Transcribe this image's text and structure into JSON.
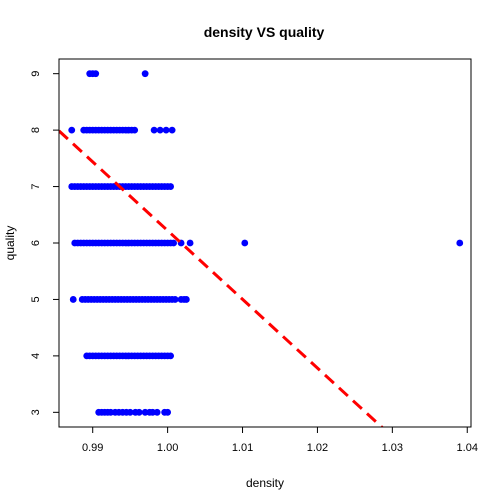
{
  "chart_data": {
    "type": "scatter",
    "title": "density VS quality",
    "xlabel": "density",
    "ylabel": "quality",
    "xlim": [
      0.9855,
      1.0405
    ],
    "ylim": [
      2.74,
      9.26
    ],
    "xticks": [
      {
        "value": 0.99,
        "label": "0.99"
      },
      {
        "value": 1.0,
        "label": "1.00"
      },
      {
        "value": 1.01,
        "label": "1.01"
      },
      {
        "value": 1.02,
        "label": "1.02"
      },
      {
        "value": 1.03,
        "label": "1.03"
      },
      {
        "value": 1.04,
        "label": "1.04"
      }
    ],
    "yticks": [
      {
        "value": 3,
        "label": "3"
      },
      {
        "value": 4,
        "label": "4"
      },
      {
        "value": 5,
        "label": "5"
      },
      {
        "value": 6,
        "label": "6"
      },
      {
        "value": 7,
        "label": "7"
      },
      {
        "value": 8,
        "label": "8"
      },
      {
        "value": 9,
        "label": "9"
      }
    ],
    "point_color": "#0000ff",
    "line_color": "#ff0000",
    "grid": false,
    "series": [
      {
        "values": [
          {
            "quality": 3,
            "density": [
              0.9908,
              0.9912,
              0.9916,
              0.992,
              0.9924,
              0.993,
              0.9935,
              0.994,
              0.9945,
              0.995,
              0.9957,
              0.9962,
              0.997,
              0.9976,
              0.998,
              0.9986,
              0.9996,
              1.0
            ]
          },
          {
            "quality": 4,
            "density": [
              0.9892,
              0.9896,
              0.99,
              0.9904,
              0.9908,
              0.9912,
              0.9916,
              0.992,
              0.9924,
              0.9928,
              0.9932,
              0.9936,
              0.994,
              0.9944,
              0.9948,
              0.9952,
              0.9956,
              0.996,
              0.9964,
              0.9968,
              0.9972,
              0.9976,
              0.998,
              0.9984,
              0.9988,
              0.9992,
              0.9996,
              1.0,
              1.0004
            ]
          },
          {
            "quality": 5,
            "density": [
              0.9874,
              0.9886,
              0.989,
              0.9894,
              0.9898,
              0.9902,
              0.9906,
              0.991,
              0.9914,
              0.9918,
              0.9922,
              0.9926,
              0.993,
              0.9934,
              0.9938,
              0.9942,
              0.9946,
              0.995,
              0.9954,
              0.9958,
              0.9962,
              0.9966,
              0.997,
              0.9974,
              0.9978,
              0.9982,
              0.9986,
              0.999,
              0.9994,
              0.9998,
              1.0002,
              1.0006,
              1.001,
              1.0018,
              1.0022,
              1.0025
            ]
          },
          {
            "quality": 6,
            "density": [
              0.9876,
              0.988,
              0.9884,
              0.9888,
              0.9892,
              0.9896,
              0.99,
              0.9904,
              0.9908,
              0.9912,
              0.9916,
              0.992,
              0.9924,
              0.9928,
              0.9932,
              0.9936,
              0.994,
              0.9944,
              0.9948,
              0.9952,
              0.9956,
              0.996,
              0.9964,
              0.9968,
              0.9972,
              0.9976,
              0.998,
              0.9984,
              0.9988,
              0.9992,
              0.9996,
              1.0,
              1.0004,
              1.0008,
              1.0018,
              1.003,
              1.0103,
              1.039
            ]
          },
          {
            "quality": 7,
            "density": [
              0.9872,
              0.9876,
              0.988,
              0.9884,
              0.9888,
              0.9892,
              0.9896,
              0.99,
              0.9904,
              0.9908,
              0.9912,
              0.9916,
              0.992,
              0.9924,
              0.9928,
              0.9932,
              0.9936,
              0.994,
              0.9944,
              0.9948,
              0.9952,
              0.9956,
              0.996,
              0.9964,
              0.9968,
              0.9972,
              0.9976,
              0.998,
              0.9984,
              0.9988,
              0.9992,
              0.9996,
              1.0,
              1.0004
            ]
          },
          {
            "quality": 8,
            "density": [
              0.9872,
              0.9888,
              0.9892,
              0.9896,
              0.99,
              0.9904,
              0.9908,
              0.9912,
              0.9916,
              0.992,
              0.9924,
              0.9928,
              0.9932,
              0.9936,
              0.994,
              0.9944,
              0.9948,
              0.9952,
              0.9956,
              0.9982,
              0.999,
              0.9998,
              1.0006
            ]
          },
          {
            "quality": 9,
            "density": [
              0.9896,
              0.99,
              0.9904,
              0.997
            ]
          }
        ]
      }
    ],
    "regression_line": {
      "style": "dashed",
      "intercept": 128.0,
      "slope": -121.78
    }
  }
}
